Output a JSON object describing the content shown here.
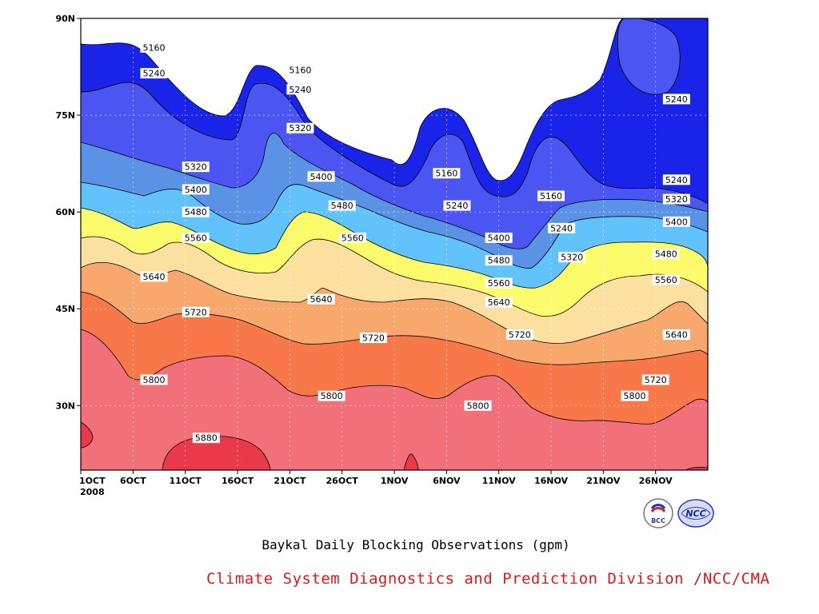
{
  "chart_data": {
    "type": "heatmap",
    "subtitle": "Baykal Daily Blocking Observations (gpm)",
    "credit": "Climate System Diagnostics and Prediction Division /NCC/CMA",
    "x_ticks": [
      "1OCT",
      "6OCT",
      "11OCT",
      "16OCT",
      "21OCT",
      "26OCT",
      "1NOV",
      "6NOV",
      "11NOV",
      "16NOV",
      "21NOV",
      "26NOV"
    ],
    "x_year": "2008",
    "y_ticks": [
      "90N",
      "75N",
      "60N",
      "45N",
      "30N"
    ],
    "xlim": [
      "2008-10-01",
      "2008-11-30"
    ],
    "ylim": [
      20,
      90
    ],
    "contour_levels": [
      5160,
      5240,
      5320,
      5400,
      5480,
      5560,
      5640,
      5720,
      5800,
      5880
    ],
    "fill_colors": [
      "#0f1b7a",
      "#1a24e8",
      "#4a55f2",
      "#5a92e6",
      "#62c2fb",
      "#fbfb6c",
      "#fbe0a0",
      "#f8a86c",
      "#f8784a",
      "#f2707a",
      "#ea3a4a"
    ],
    "labels": [
      {
        "day": 7,
        "lat": 85.5,
        "text": "5160"
      },
      {
        "day": 7,
        "lat": 81.5,
        "text": "5240"
      },
      {
        "day": 21,
        "lat": 82,
        "text": "5160"
      },
      {
        "day": 21,
        "lat": 79,
        "text": "5240"
      },
      {
        "day": 21,
        "lat": 73,
        "text": "5320"
      },
      {
        "day": 11,
        "lat": 67,
        "text": "5320"
      },
      {
        "day": 11,
        "lat": 63.5,
        "text": "5400"
      },
      {
        "day": 11,
        "lat": 60,
        "text": "5480"
      },
      {
        "day": 11,
        "lat": 56,
        "text": "5560"
      },
      {
        "day": 7,
        "lat": 50,
        "text": "5640"
      },
      {
        "day": 11,
        "lat": 44.5,
        "text": "5720"
      },
      {
        "day": 7,
        "lat": 34,
        "text": "5800"
      },
      {
        "day": 23,
        "lat": 65.5,
        "text": "5400"
      },
      {
        "day": 25,
        "lat": 61,
        "text": "5480"
      },
      {
        "day": 26,
        "lat": 56,
        "text": "5560"
      },
      {
        "day": 23,
        "lat": 46.5,
        "text": "5640"
      },
      {
        "day": 28,
        "lat": 40.5,
        "text": "5720"
      },
      {
        "day": 24,
        "lat": 31.5,
        "text": "5800"
      },
      {
        "day": 12,
        "lat": 25,
        "text": "5880"
      },
      {
        "day": 35,
        "lat": 66,
        "text": "5160"
      },
      {
        "day": 36,
        "lat": 61,
        "text": "5240"
      },
      {
        "day": 40,
        "lat": 56,
        "text": "5400"
      },
      {
        "day": 40,
        "lat": 52.5,
        "text": "5480"
      },
      {
        "day": 40,
        "lat": 49,
        "text": "5560"
      },
      {
        "day": 40,
        "lat": 46,
        "text": "5640"
      },
      {
        "day": 42,
        "lat": 41,
        "text": "5720"
      },
      {
        "day": 38,
        "lat": 30,
        "text": "5800"
      },
      {
        "day": 45,
        "lat": 62.5,
        "text": "5160"
      },
      {
        "day": 46,
        "lat": 57.5,
        "text": "5240"
      },
      {
        "day": 47,
        "lat": 53,
        "text": "5320"
      },
      {
        "day": 53,
        "lat": 31.5,
        "text": "5800"
      },
      {
        "day": 57,
        "lat": 77.5,
        "text": "5240"
      },
      {
        "day": 57,
        "lat": 65,
        "text": "5240"
      },
      {
        "day": 57,
        "lat": 62,
        "text": "5320"
      },
      {
        "day": 57,
        "lat": 58.5,
        "text": "5400"
      },
      {
        "day": 56,
        "lat": 53.5,
        "text": "5480"
      },
      {
        "day": 56,
        "lat": 49.5,
        "text": "5560"
      },
      {
        "day": 57,
        "lat": 41,
        "text": "5640"
      },
      {
        "day": 55,
        "lat": 34,
        "text": "5720"
      }
    ]
  },
  "logos": {
    "left": "BCC",
    "right": "NCC"
  }
}
